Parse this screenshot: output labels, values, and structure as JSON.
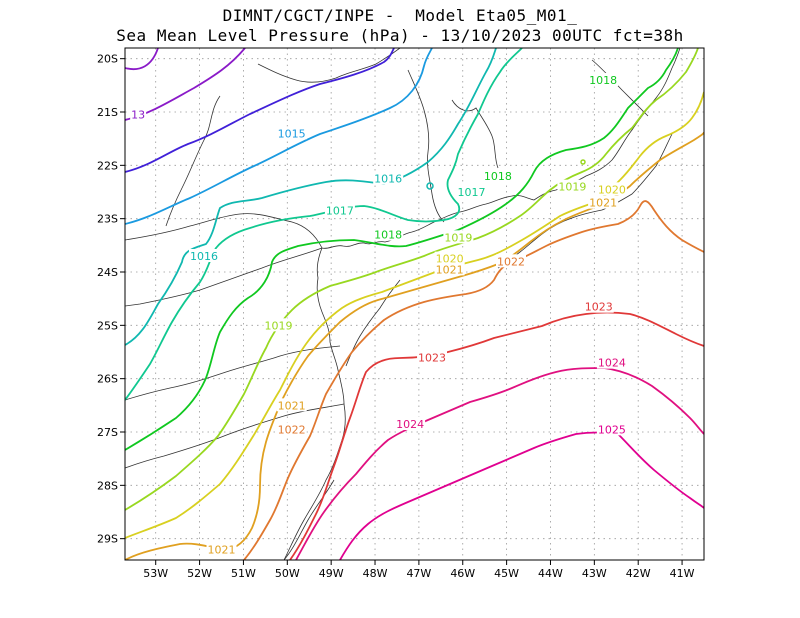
{
  "title_line1": "DIMNT/CGCT/INPE -  Model Eta05_M01_",
  "title_line2": "Sea Mean Level Pressure (hPa) - 13/10/2023 00UTC fct=38h",
  "lat_ticks": [
    "20S",
    "21S",
    "22S",
    "23S",
    "24S",
    "25S",
    "26S",
    "27S",
    "28S",
    "29S"
  ],
  "lon_ticks": [
    "53W",
    "52W",
    "51W",
    "50W",
    "49W",
    "48W",
    "47W",
    "46W",
    "45W",
    "44W",
    "43W",
    "42W",
    "41W"
  ],
  "map": {
    "lon_min": -53.7,
    "lon_max": -40.5,
    "lat_min": -29.4,
    "lat_max": -19.8
  },
  "colors": {
    "1013": "#8a1ac8",
    "1014": "#4020d8",
    "1015": "#1a9ae0",
    "1016": "#10b8b0",
    "1017": "#10c890",
    "1018": "#10c820",
    "1019": "#98d820",
    "1020": "#d8d020",
    "1021": "#e0a020",
    "1022": "#e07830",
    "1023": "#e03838",
    "1024": "#e01080",
    "1025": "#e00090"
  },
  "contour_labels": [
    {
      "text": "13",
      "lon": -53.4,
      "lat": -21.05,
      "level": "1013"
    },
    {
      "text": "1015",
      "lon": -49.9,
      "lat": -21.4,
      "level": "1015"
    },
    {
      "text": "1016",
      "lon": -47.7,
      "lat": -22.25,
      "level": "1016"
    },
    {
      "text": "1016",
      "lon": -51.9,
      "lat": -23.7,
      "level": "1016"
    },
    {
      "text": "1017",
      "lon": -48.8,
      "lat": -22.85,
      "level": "1017"
    },
    {
      "text": "1017",
      "lon": -45.8,
      "lat": -22.5,
      "level": "1017"
    },
    {
      "text": "1018",
      "lon": -45.2,
      "lat": -22.2,
      "level": "1018"
    },
    {
      "text": "1018",
      "lon": -42.8,
      "lat": -20.4,
      "level": "1018"
    },
    {
      "text": "1018",
      "lon": -47.7,
      "lat": -23.3,
      "level": "1018"
    },
    {
      "text": "1019",
      "lon": -50.2,
      "lat": -25.0,
      "level": "1019"
    },
    {
      "text": "1019",
      "lon": -46.1,
      "lat": -23.35,
      "level": "1019"
    },
    {
      "text": "1019",
      "lon": -43.5,
      "lat": -22.4,
      "level": "1019"
    },
    {
      "text": "1020",
      "lon": -46.3,
      "lat": -23.75,
      "level": "1020"
    },
    {
      "text": "1020",
      "lon": -42.6,
      "lat": -22.45,
      "level": "1020"
    },
    {
      "text": "1021",
      "lon": -46.3,
      "lat": -23.95,
      "level": "1021"
    },
    {
      "text": "1021",
      "lon": -42.8,
      "lat": -22.7,
      "level": "1021"
    },
    {
      "text": "1021",
      "lon": -49.9,
      "lat": -26.5,
      "level": "1021"
    },
    {
      "text": "1021",
      "lon": -51.5,
      "lat": -29.2,
      "level": "1021"
    },
    {
      "text": "1022",
      "lon": -44.9,
      "lat": -23.8,
      "level": "1022"
    },
    {
      "text": "1022",
      "lon": -49.9,
      "lat": -26.95,
      "level": "1022"
    },
    {
      "text": "1023",
      "lon": -46.7,
      "lat": -25.6,
      "level": "1023"
    },
    {
      "text": "1023",
      "lon": -42.9,
      "lat": -24.65,
      "level": "1023"
    },
    {
      "text": "1024",
      "lon": -47.2,
      "lat": -26.85,
      "level": "1024"
    },
    {
      "text": "1024",
      "lon": -42.6,
      "lat": -25.7,
      "level": "1024"
    },
    {
      "text": "1025",
      "lon": -42.6,
      "lat": -26.95,
      "level": "1025"
    }
  ]
}
